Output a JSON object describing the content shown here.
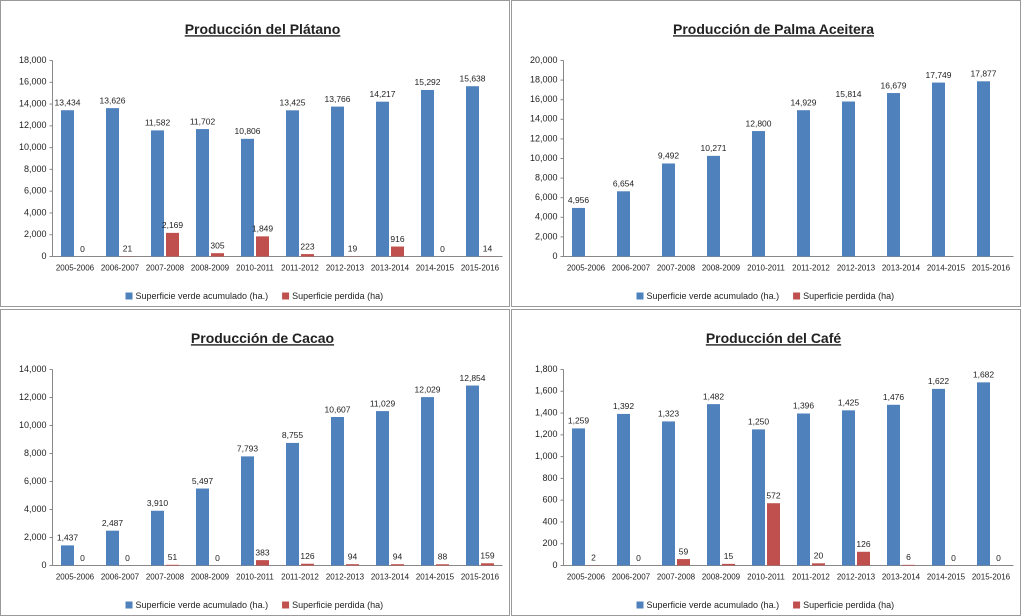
{
  "chart_data": [
    {
      "type": "bar",
      "title": "Producción del Plátano",
      "categories": [
        "2005-2006",
        "2006-2007",
        "2007-2008",
        "2008-2009",
        "2010-2011",
        "2011-2012",
        "2012-2013",
        "2013-2014",
        "2014-2015",
        "2015-2016"
      ],
      "series": [
        {
          "name": "Superficie verde acumulado (ha.)",
          "color": "#4f81bd",
          "values": [
            13434,
            13626,
            11582,
            11702,
            10806,
            13425,
            13766,
            14217,
            15292,
            15638
          ],
          "value_labels": [
            "13,434",
            "13,626",
            "11,582",
            "11,702",
            "10,806",
            "13,425",
            "13,766",
            "14,217",
            "15,292",
            "15,638"
          ]
        },
        {
          "name": "Superficie perdida (ha)",
          "color": "#c0504d",
          "values": [
            0,
            21,
            2169,
            305,
            1849,
            223,
            19,
            916,
            0,
            14
          ],
          "value_labels": [
            "0",
            "21",
            "2,169",
            "305",
            "1,849",
            "223",
            "19",
            "916",
            "0",
            "14"
          ]
        }
      ],
      "ylim": [
        0,
        18000
      ],
      "yticks": [
        0,
        {
          "value": 2000,
          "label": "2,000"
        },
        {
          "value": 4000,
          "label": "4,000"
        },
        {
          "value": 6000,
          "label": "6,000"
        },
        {
          "value": 8000,
          "label": "8,000"
        },
        {
          "value": 10000,
          "label": "10,000"
        },
        {
          "value": 12000,
          "label": "12,000"
        },
        {
          "value": 14000,
          "label": "14,000"
        },
        {
          "value": 16000,
          "label": "16,000"
        },
        {
          "value": 18000,
          "label": "18,000"
        }
      ],
      "grid": false,
      "legend": "bottom"
    },
    {
      "type": "bar",
      "title": "Producción de Palma Aceitera",
      "categories": [
        "2005-2006",
        "2006-2007",
        "2007-2008",
        "2008-2009",
        "2010-2011",
        "2011-2012",
        "2012-2013",
        "2013-2014",
        "2014-2015",
        "2015-2016"
      ],
      "series": [
        {
          "name": "Superficie verde acumulado (ha.)",
          "color": "#4f81bd",
          "values": [
            4956,
            6654,
            9492,
            10271,
            12800,
            14929,
            15814,
            16679,
            17749,
            17877
          ],
          "value_labels": [
            "4,956",
            "6,654",
            "9,492",
            "10,271",
            "12,800",
            "14,929",
            "15,814",
            "16,679",
            "17,749",
            "17,877"
          ]
        },
        {
          "name": "Superficie perdida (ha)",
          "color": "#c0504d",
          "values": [
            null,
            null,
            null,
            null,
            null,
            null,
            null,
            null,
            null,
            null
          ],
          "value_labels": [
            null,
            null,
            null,
            null,
            null,
            null,
            null,
            null,
            null,
            null
          ]
        }
      ],
      "ylim": [
        0,
        20000
      ],
      "yticks": [
        0,
        {
          "value": 2000,
          "label": "2,000"
        },
        {
          "value": 4000,
          "label": "4,000"
        },
        {
          "value": 6000,
          "label": "6,000"
        },
        {
          "value": 8000,
          "label": "8,000"
        },
        {
          "value": 10000,
          "label": "10,000"
        },
        {
          "value": 12000,
          "label": "12,000"
        },
        {
          "value": 14000,
          "label": "14,000"
        },
        {
          "value": 16000,
          "label": "16,000"
        },
        {
          "value": 18000,
          "label": "18,000"
        },
        {
          "value": 20000,
          "label": "20,000"
        }
      ],
      "grid": false,
      "legend": "bottom"
    },
    {
      "type": "bar",
      "title": "Producción de Cacao",
      "categories": [
        "2005-2006",
        "2006-2007",
        "2007-2008",
        "2008-2009",
        "2010-2011",
        "2011-2012",
        "2012-2013",
        "2013-2014",
        "2014-2015",
        "2015-2016"
      ],
      "series": [
        {
          "name": "Superficie verde acumulado (ha.)",
          "color": "#4f81bd",
          "values": [
            1437,
            2487,
            3910,
            5497,
            7793,
            8755,
            10607,
            11029,
            12029,
            12854
          ],
          "value_labels": [
            "1,437",
            "2,487",
            "3,910",
            "5,497",
            "7,793",
            "8,755",
            "10,607",
            "11,029",
            "12,029",
            "12,854"
          ]
        },
        {
          "name": "Superficie perdida (ha)",
          "color": "#c0504d",
          "values": [
            0,
            0,
            51,
            0,
            383,
            126,
            94,
            94,
            88,
            159
          ],
          "value_labels": [
            "0",
            "0",
            "51",
            "0",
            "383",
            "126",
            "94",
            "94",
            "88",
            "159"
          ]
        }
      ],
      "ylim": [
        0,
        14000
      ],
      "yticks": [
        0,
        {
          "value": 2000,
          "label": "2,000"
        },
        {
          "value": 4000,
          "label": "4,000"
        },
        {
          "value": 6000,
          "label": "6,000"
        },
        {
          "value": 8000,
          "label": "8,000"
        },
        {
          "value": 10000,
          "label": "10,000"
        },
        {
          "value": 12000,
          "label": "12,000"
        },
        {
          "value": 14000,
          "label": "14,000"
        }
      ],
      "grid": false,
      "legend": "bottom"
    },
    {
      "type": "bar",
      "title": "Producción del Café",
      "categories": [
        "2005-2006",
        "2006-2007",
        "2007-2008",
        "2008-2009",
        "2010-2011",
        "2011-2012",
        "2012-2013",
        "2013-2014",
        "2014-2015",
        "2015-2016"
      ],
      "series": [
        {
          "name": "Superficie verde acumulado (ha.)",
          "color": "#4f81bd",
          "values": [
            1259,
            1392,
            1323,
            1482,
            1250,
            1396,
            1425,
            1476,
            1622,
            1682
          ],
          "value_labels": [
            "1,259",
            "1,392",
            "1,323",
            "1,482",
            "1,250",
            "1,396",
            "1,425",
            "1,476",
            "1,622",
            "1,682"
          ]
        },
        {
          "name": "Superficie perdida (ha)",
          "color": "#c0504d",
          "values": [
            2,
            0,
            59,
            15,
            572,
            20,
            126,
            6,
            0,
            0
          ],
          "value_labels": [
            "2",
            "0",
            "59",
            "15",
            "572",
            "20",
            "126",
            "6",
            "0",
            "0"
          ]
        }
      ],
      "ylim": [
        0,
        1800
      ],
      "yticks": [
        0,
        200,
        400,
        600,
        800,
        {
          "value": 1000,
          "label": "1,000"
        },
        {
          "value": 1200,
          "label": "1,200"
        },
        {
          "value": 1400,
          "label": "1,400"
        },
        {
          "value": 1600,
          "label": "1,600"
        },
        {
          "value": 1800,
          "label": "1,800"
        }
      ],
      "grid": false,
      "legend": "bottom"
    }
  ]
}
